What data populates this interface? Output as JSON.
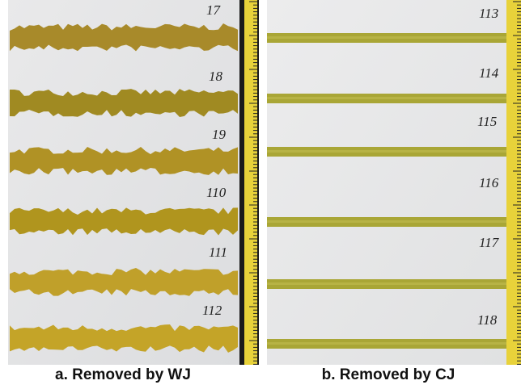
{
  "left_panel": {
    "caption": "a. Removed by WJ",
    "labels": [
      "17",
      "18",
      "19",
      "110",
      "111",
      "112"
    ]
  },
  "right_panel": {
    "caption": "b. Removed by CJ",
    "labels": [
      "113",
      "114",
      "115",
      "116",
      "117",
      "118"
    ]
  }
}
